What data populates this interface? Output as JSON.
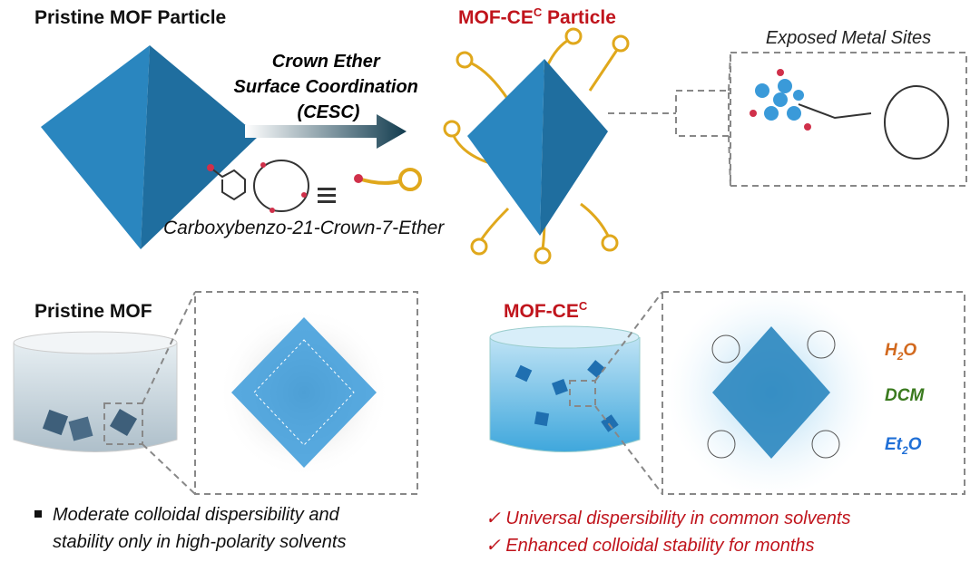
{
  "top": {
    "left_title": "Pristine MOF Particle",
    "arrow_label": [
      "Crown Ether",
      "Surface Coordination",
      "(CESC)"
    ],
    "right_title": {
      "base": "MOF-CE",
      "sup": "C",
      "rest": " Particle"
    },
    "zoom_title": "Exposed Metal Sites",
    "ligand_name": "Carboxybenzo-21-Crown-7-Ether"
  },
  "bottom": {
    "left_title": "Pristine MOF",
    "right_title": {
      "base": "MOF-CE",
      "sup": "C"
    },
    "solvents": [
      {
        "base": "H",
        "sub": "2",
        "rest": "O",
        "color": "#d2691e"
      },
      {
        "base": "DCM",
        "color": "#3a7a1e"
      },
      {
        "base": "Et",
        "sub": "2",
        "rest": "O",
        "color": "#1f6fd6"
      }
    ],
    "left_notes": [
      "Moderate colloidal dispersibility and",
      "stability only in high-polarity solvents"
    ],
    "right_notes": [
      "✓ Universal dispersibility in common solvents",
      "✓ Enhanced colloidal stability for months"
    ]
  }
}
